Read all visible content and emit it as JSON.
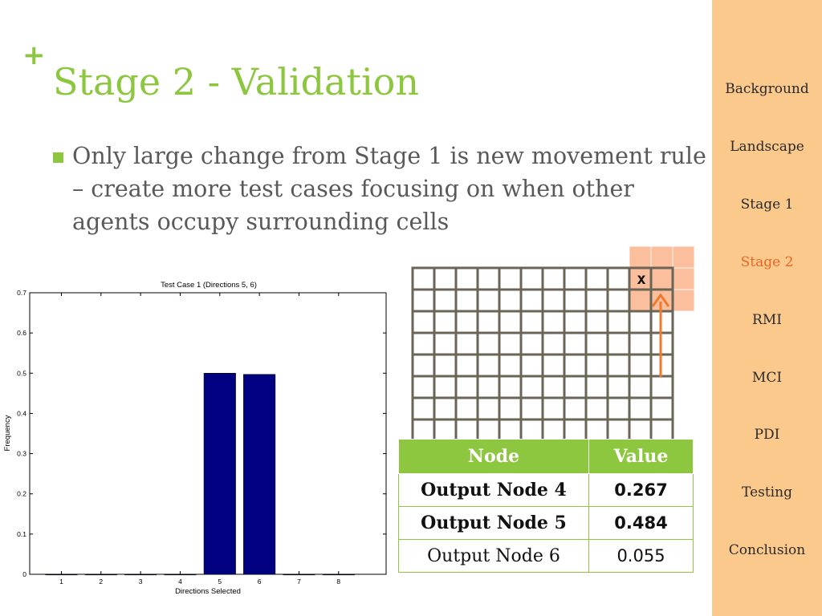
{
  "slide": {
    "plus": "+",
    "title": "Stage 2 - Validation",
    "bullet": "Only large change from Stage 1 is new movement rule – create more test cases focusing on when other agents occupy surrounding cells"
  },
  "sidebar": {
    "items": [
      {
        "label": "Background"
      },
      {
        "label": "Landscape"
      },
      {
        "label": "Stage 1"
      },
      {
        "label": "Stage 2",
        "active": true
      },
      {
        "label": "RMI"
      },
      {
        "label": "MCI"
      },
      {
        "label": "PDI"
      },
      {
        "label": "Testing"
      },
      {
        "label": "Conclusion"
      }
    ]
  },
  "grid": {
    "marker": "x"
  },
  "table": {
    "headers": [
      "Node",
      "Value"
    ],
    "rows": [
      {
        "node": "Output Node 4",
        "value": "0.267",
        "bold": true
      },
      {
        "node": "Output Node 5",
        "value": "0.484",
        "bold": true
      },
      {
        "node": "Output Node 6",
        "value": "0.055",
        "bold": false
      }
    ]
  },
  "colors": {
    "accent": "#8dc63f",
    "sidebar": "#fbc98b",
    "active": "#e8652b",
    "bar": "#000080",
    "grid": "#6b6558",
    "highlight": "#fbbf9d",
    "arrow": "#ef7a2e"
  },
  "chart_data": {
    "type": "bar",
    "title": "Test Case 1 (Directions 5, 6)",
    "xlabel": "Directions Selected",
    "ylabel": "Frequency",
    "categories": [
      "1",
      "2",
      "3",
      "4",
      "5",
      "6",
      "7",
      "8"
    ],
    "values": [
      0,
      0,
      0,
      0,
      0.5,
      0.497,
      0,
      0
    ],
    "ylim": [
      0,
      0.7
    ],
    "yticks": [
      "0",
      "0.1",
      "0.2",
      "0.3",
      "0.4",
      "0.5",
      "0.6",
      "0.7"
    ],
    "grid": false
  }
}
